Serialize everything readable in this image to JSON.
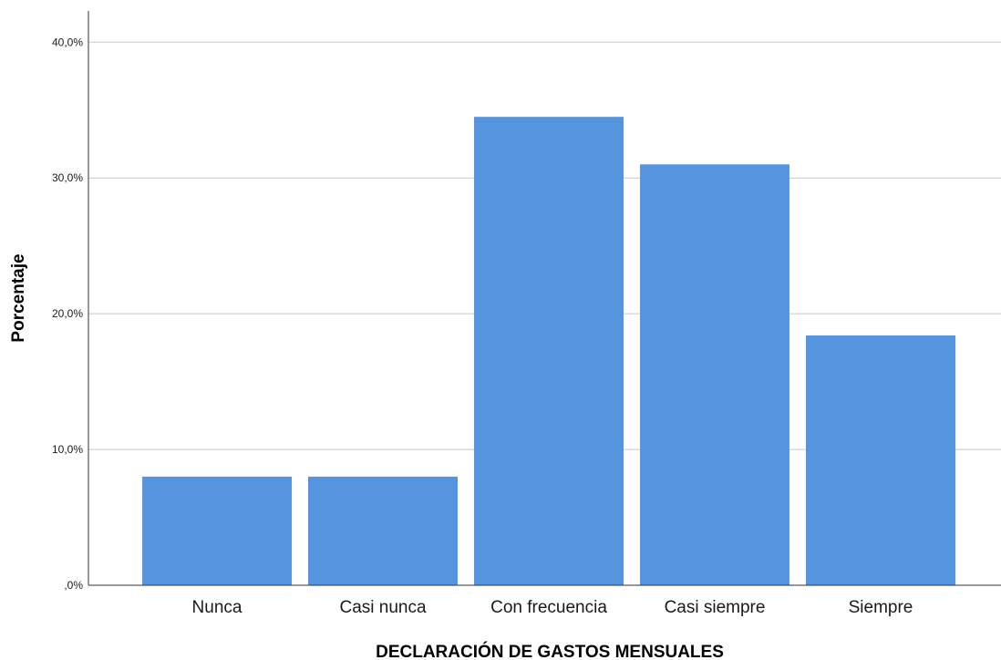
{
  "chart_data": {
    "type": "bar",
    "categories": [
      "Nunca",
      "Casi nunca",
      "Con frecuencia",
      "Casi siempre",
      "Siempre"
    ],
    "values": [
      8.0,
      8.0,
      34.5,
      31.0,
      18.4
    ],
    "xlabel": "DECLARACIÓN DE GASTOS MENSUALES",
    "ylabel": "Porcentaje",
    "ylim": [
      0,
      42.3
    ],
    "yticks": [
      0,
      10,
      20,
      30,
      40
    ],
    "ytick_labels": [
      ",0%",
      "10,0%",
      "20,0%",
      "30,0%",
      "40,0%"
    ],
    "grid": true,
    "bar_color": "#5595e0",
    "grid_color": "#c8c8c8",
    "axis_color": "#333333"
  }
}
